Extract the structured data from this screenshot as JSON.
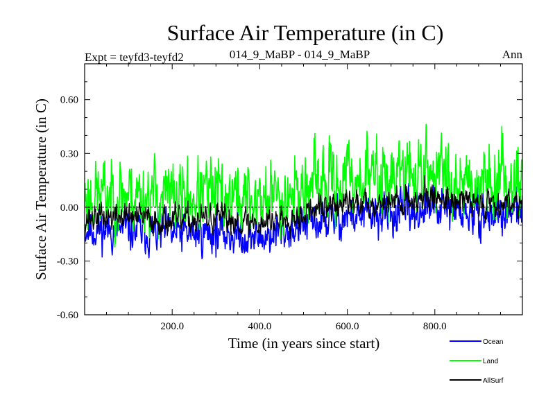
{
  "chart_data": {
    "type": "line",
    "title": "Surface Air Temperature (in C)",
    "subtitle_left": "Expt = teyfd3-teyfd2",
    "subtitle_center": "014_9_MaBP - 014_9_MaBP",
    "subtitle_right": "Ann",
    "xlabel": "Time (in years since start)",
    "ylabel": "Surface Air Temperature (in C)",
    "xlim": [
      0,
      1000
    ],
    "ylim": [
      -0.6,
      0.8
    ],
    "xticks": [
      200,
      400,
      600,
      800
    ],
    "xtick_labels": [
      "200.0",
      "400.0",
      "600.0",
      "800.0"
    ],
    "yticks": [
      -0.6,
      -0.3,
      0.0,
      0.3,
      0.6
    ],
    "ytick_labels": [
      "-0.60",
      "-0.30",
      "0.00",
      "0.30",
      "0.60"
    ],
    "zero_line": 0.0,
    "legend_position": "bottom-right",
    "series_note": "Approximate annual values read from the plot; ~1000 years of noisy data summarized by anchor points (year, value) with interannual noise amplitude.",
    "series": [
      {
        "name": "Ocean",
        "color": "#0000ff",
        "seed": 11,
        "noise": 0.075,
        "anchors": [
          [
            0,
            -0.12
          ],
          [
            100,
            -0.13
          ],
          [
            200,
            -0.15
          ],
          [
            300,
            -0.14
          ],
          [
            400,
            -0.17
          ],
          [
            500,
            -0.1
          ],
          [
            600,
            -0.05
          ],
          [
            700,
            -0.04
          ],
          [
            800,
            0.0
          ],
          [
            900,
            -0.05
          ],
          [
            1000,
            -0.02
          ]
        ]
      },
      {
        "name": "Land",
        "color": "#00ff00",
        "seed": 23,
        "noise": 0.13,
        "anchors": [
          [
            0,
            0.06
          ],
          [
            100,
            0.08
          ],
          [
            200,
            0.05
          ],
          [
            300,
            0.07
          ],
          [
            400,
            0.04
          ],
          [
            500,
            0.1
          ],
          [
            600,
            0.16
          ],
          [
            700,
            0.18
          ],
          [
            800,
            0.2
          ],
          [
            900,
            0.15
          ],
          [
            1000,
            0.17
          ]
        ]
      },
      {
        "name": "AllSurf",
        "color": "#000000",
        "seed": 37,
        "noise": 0.05,
        "anchors": [
          [
            0,
            -0.06
          ],
          [
            100,
            -0.05
          ],
          [
            200,
            -0.08
          ],
          [
            300,
            -0.06
          ],
          [
            400,
            -0.09
          ],
          [
            500,
            -0.03
          ],
          [
            600,
            0.02
          ],
          [
            700,
            0.03
          ],
          [
            800,
            0.06
          ],
          [
            900,
            0.02
          ],
          [
            1000,
            0.04
          ]
        ]
      }
    ]
  }
}
